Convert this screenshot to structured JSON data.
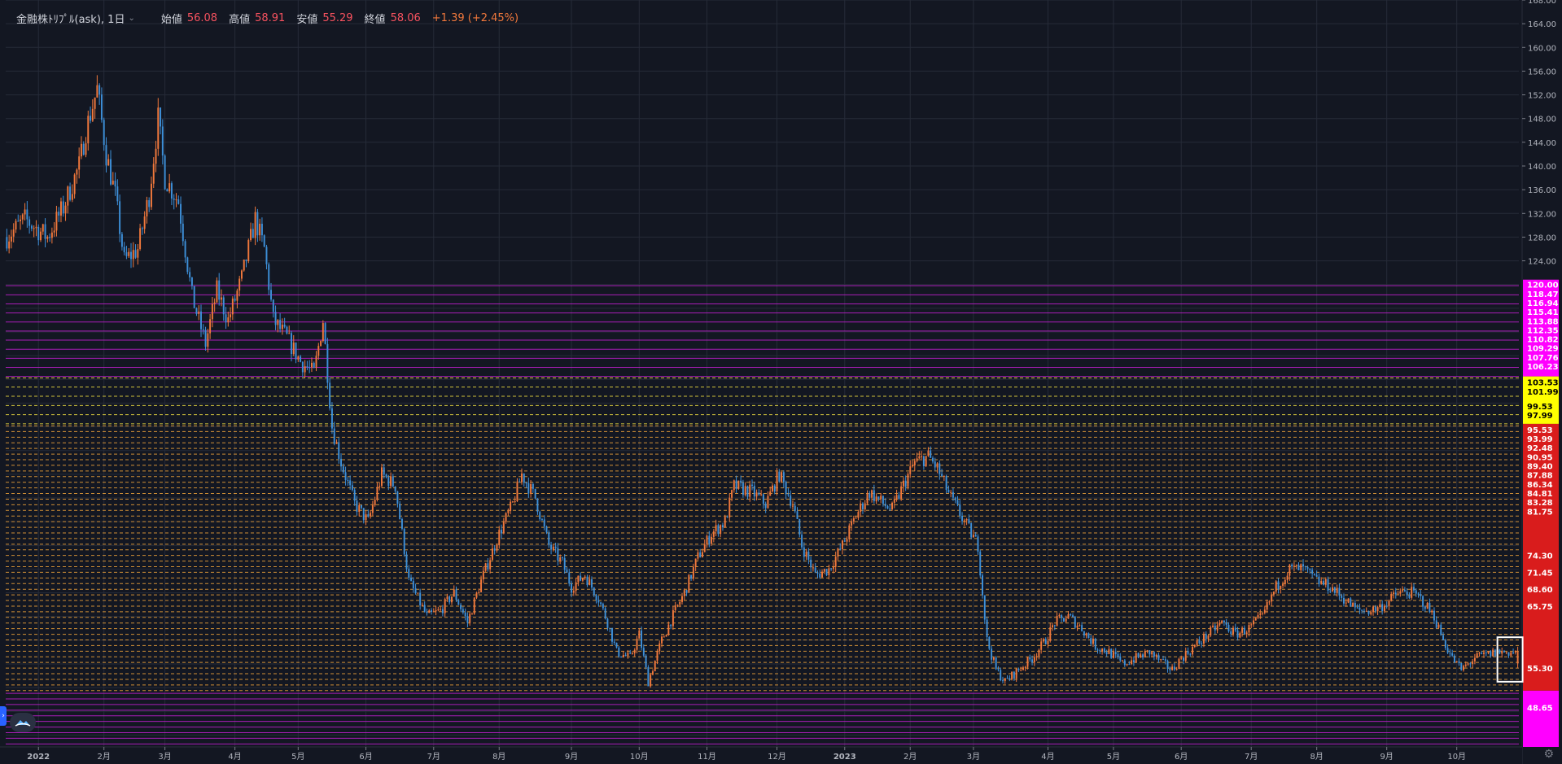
{
  "legend": {
    "symbol": "金融株ﾄﾘﾌﾟﾙ(ask), 1日",
    "open_label": "始値",
    "open": "56.08",
    "high_label": "高値",
    "high": "58.91",
    "low_label": "安値",
    "low": "55.29",
    "close_label": "終値",
    "close": "58.06",
    "change": "+1.39 (+2.45%)"
  },
  "colors": {
    "background": "#131722",
    "up": "#f0783c",
    "down": "#3d8fd8",
    "magenta_zone": "#ff00ff",
    "yellow_zone": "#ffff00",
    "red_zone": "#d91c1c",
    "dashed_level": "#f2a53a"
  },
  "icons": {
    "settings": "gear-icon",
    "logo": "cloud-logo-icon",
    "chevron": "chevron-down-icon",
    "collapse": "chevron-right-icon"
  },
  "chart_data": {
    "type": "candlestick",
    "title": "",
    "xlabel": "",
    "ylabel": "",
    "ylim": [
      42,
      168
    ],
    "y_ticks": [
      "168.00",
      "164.00",
      "160.00",
      "156.00",
      "152.00",
      "148.00",
      "144.00",
      "140.00",
      "136.00",
      "132.00",
      "128.00",
      "124.00"
    ],
    "x_ticks": [
      {
        "label": "2022",
        "idx": 14
      },
      {
        "label": "2月",
        "idx": 43
      },
      {
        "label": "3月",
        "idx": 70
      },
      {
        "label": "4月",
        "idx": 101
      },
      {
        "label": "5月",
        "idx": 129
      },
      {
        "label": "6月",
        "idx": 159
      },
      {
        "label": "7月",
        "idx": 189
      },
      {
        "label": "8月",
        "idx": 218
      },
      {
        "label": "9月",
        "idx": 250
      },
      {
        "label": "10月",
        "idx": 280
      },
      {
        "label": "11月",
        "idx": 310
      },
      {
        "label": "12月",
        "idx": 341
      },
      {
        "label": "2023",
        "idx": 371
      },
      {
        "label": "2月",
        "idx": 400
      },
      {
        "label": "3月",
        "idx": 428
      },
      {
        "label": "4月",
        "idx": 461
      },
      {
        "label": "5月",
        "idx": 490
      },
      {
        "label": "6月",
        "idx": 520
      },
      {
        "label": "7月",
        "idx": 551
      },
      {
        "label": "8月",
        "idx": 580
      },
      {
        "label": "9月",
        "idx": 611
      },
      {
        "label": "10月",
        "idx": 642
      }
    ],
    "bars_total": 670,
    "anchors": [
      [
        0,
        128
      ],
      [
        8,
        131
      ],
      [
        18,
        128
      ],
      [
        25,
        133
      ],
      [
        32,
        140
      ],
      [
        35,
        146
      ],
      [
        40,
        153
      ],
      [
        44,
        142
      ],
      [
        48,
        135
      ],
      [
        52,
        124
      ],
      [
        58,
        126
      ],
      [
        63,
        135
      ],
      [
        67,
        148
      ],
      [
        70,
        138
      ],
      [
        76,
        134
      ],
      [
        82,
        118
      ],
      [
        88,
        110
      ],
      [
        93,
        119
      ],
      [
        98,
        114
      ],
      [
        104,
        121
      ],
      [
        110,
        131
      ],
      [
        114,
        126
      ],
      [
        118,
        114
      ],
      [
        124,
        111
      ],
      [
        130,
        107
      ],
      [
        136,
        105
      ],
      [
        140,
        114
      ],
      [
        144,
        96
      ],
      [
        148,
        90
      ],
      [
        154,
        83
      ],
      [
        160,
        80
      ],
      [
        166,
        88
      ],
      [
        172,
        86
      ],
      [
        178,
        70
      ],
      [
        186,
        64
      ],
      [
        192,
        65
      ],
      [
        198,
        68
      ],
      [
        204,
        63
      ],
      [
        210,
        70
      ],
      [
        214,
        74
      ],
      [
        218,
        78
      ],
      [
        224,
        83
      ],
      [
        228,
        88
      ],
      [
        234,
        84
      ],
      [
        240,
        76
      ],
      [
        246,
        73
      ],
      [
        250,
        69
      ],
      [
        256,
        71
      ],
      [
        262,
        67
      ],
      [
        266,
        63
      ],
      [
        270,
        58
      ],
      [
        276,
        57
      ],
      [
        280,
        61
      ],
      [
        284,
        53
      ],
      [
        290,
        60
      ],
      [
        296,
        65
      ],
      [
        300,
        68
      ],
      [
        306,
        74
      ],
      [
        312,
        78
      ],
      [
        318,
        80
      ],
      [
        322,
        86
      ],
      [
        330,
        85
      ],
      [
        336,
        83
      ],
      [
        342,
        88
      ],
      [
        348,
        83
      ],
      [
        352,
        76
      ],
      [
        358,
        71
      ],
      [
        364,
        72
      ],
      [
        370,
        76
      ],
      [
        376,
        81
      ],
      [
        382,
        85
      ],
      [
        388,
        83
      ],
      [
        392,
        82
      ],
      [
        398,
        87
      ],
      [
        402,
        90
      ],
      [
        408,
        91
      ],
      [
        412,
        89
      ],
      [
        418,
        84
      ],
      [
        424,
        80
      ],
      [
        430,
        76
      ],
      [
        434,
        60
      ],
      [
        438,
        55
      ],
      [
        442,
        53
      ],
      [
        448,
        55
      ],
      [
        454,
        57
      ],
      [
        460,
        60
      ],
      [
        464,
        63
      ],
      [
        470,
        64
      ],
      [
        476,
        62
      ],
      [
        482,
        59
      ],
      [
        488,
        58
      ],
      [
        494,
        56
      ],
      [
        500,
        57
      ],
      [
        506,
        58
      ],
      [
        512,
        56
      ],
      [
        516,
        55
      ],
      [
        520,
        57
      ],
      [
        526,
        59
      ],
      [
        532,
        61
      ],
      [
        538,
        63
      ],
      [
        544,
        61
      ],
      [
        550,
        62
      ],
      [
        556,
        64
      ],
      [
        562,
        69
      ],
      [
        568,
        72
      ],
      [
        574,
        72
      ],
      [
        580,
        70
      ],
      [
        586,
        69
      ],
      [
        592,
        67
      ],
      [
        598,
        65
      ],
      [
        604,
        65
      ],
      [
        610,
        66
      ],
      [
        616,
        68
      ],
      [
        622,
        68
      ],
      [
        626,
        67
      ],
      [
        632,
        64
      ],
      [
        636,
        60
      ],
      [
        640,
        57
      ],
      [
        644,
        55
      ],
      [
        650,
        57
      ],
      [
        660,
        58
      ],
      [
        669,
        58
      ]
    ],
    "last_bar": {
      "open": 56.08,
      "high": 58.91,
      "low": 55.29,
      "close": 58.06
    },
    "price_tags": [
      {
        "value": 120.0,
        "color": "magenta"
      },
      {
        "value": 118.47,
        "color": "magenta"
      },
      {
        "value": 116.94,
        "color": "magenta"
      },
      {
        "value": 115.41,
        "color": "magenta"
      },
      {
        "value": 113.88,
        "color": "magenta"
      },
      {
        "value": 112.35,
        "color": "magenta"
      },
      {
        "value": 110.82,
        "color": "magenta"
      },
      {
        "value": 109.29,
        "color": "magenta"
      },
      {
        "value": 107.76,
        "color": "magenta"
      },
      {
        "value": 106.23,
        "color": "magenta"
      },
      {
        "value": 103.53,
        "color": "yellow"
      },
      {
        "value": 101.99,
        "color": "yellow"
      },
      {
        "value": 99.53,
        "color": "yellow"
      },
      {
        "value": 97.99,
        "color": "yellow"
      },
      {
        "value": 95.53,
        "color": "red"
      },
      {
        "value": 93.99,
        "color": "red"
      },
      {
        "value": 92.48,
        "color": "red"
      },
      {
        "value": 90.95,
        "color": "red"
      },
      {
        "value": 89.4,
        "color": "red"
      },
      {
        "value": 87.88,
        "color": "red"
      },
      {
        "value": 86.34,
        "color": "red"
      },
      {
        "value": 84.81,
        "color": "red"
      },
      {
        "value": 83.28,
        "color": "red"
      },
      {
        "value": 81.75,
        "color": "red"
      },
      {
        "value": 74.3,
        "color": "red"
      },
      {
        "value": 71.45,
        "color": "red"
      },
      {
        "value": 68.6,
        "color": "red"
      },
      {
        "value": 65.75,
        "color": "red"
      },
      {
        "value": 55.3,
        "color": "red"
      },
      {
        "value": 48.65,
        "color": "magenta"
      }
    ],
    "level_bands": [
      {
        "from": 42.5,
        "to": 51.5,
        "step": 0.95,
        "style": "solid",
        "color": "magenta"
      },
      {
        "from": 51.5,
        "to": 96.5,
        "step": 0.95,
        "style": "dashed",
        "color": "orange"
      },
      {
        "from": 96.5,
        "to": 104.5,
        "step": 1.55,
        "style": "dashed",
        "color": "yellow"
      },
      {
        "from": 104.5,
        "to": 120.5,
        "step": 1.53,
        "style": "solid",
        "color": "magenta"
      }
    ],
    "red_axis_band": [
      51.5,
      96.5
    ],
    "magenta_axis_bands": [
      [
        104.5,
        120.5
      ],
      [
        42.0,
        51.5
      ]
    ],
    "yellow_axis_band": [
      96.5,
      104.5
    ]
  }
}
